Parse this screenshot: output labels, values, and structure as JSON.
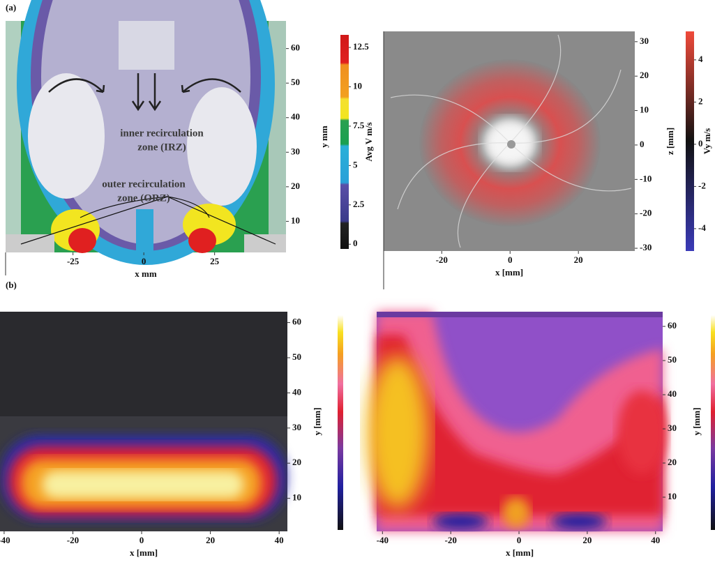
{
  "panel_labels": [
    "(a)",
    "(b)"
  ],
  "chart_data": [
    {
      "type": "flow-image",
      "xlabel": "x mm",
      "ylabel": "y mm",
      "xlim": [
        -48.8,
        50.2
      ],
      "ylim": [
        1,
        68
      ],
      "xticks": [
        -25,
        0,
        25
      ],
      "yticks": [
        10,
        20,
        30,
        40,
        50,
        60
      ],
      "colorbar": {
        "label": "Avg V m/s",
        "lim": [
          -0.3,
          13.3
        ],
        "ticks": [
          0,
          2.5,
          5,
          7.5,
          10,
          12.5
        ]
      },
      "annotations": [
        "inner recirculation",
        "zone (IRZ)",
        "outer recirculation",
        "zone (ORZ)"
      ]
    },
    {
      "type": "flow-image",
      "xlabel": "x [mm]",
      "ylabel": "z [mm]",
      "xlim": [
        -37,
        36.5
      ],
      "ylim": [
        -30.8,
        33
      ],
      "xticks": [
        -20,
        0,
        20
      ],
      "yticks": [
        -30,
        -20,
        -10,
        0,
        10,
        20,
        30
      ],
      "colorbar": {
        "label": "Vy m/s",
        "lim": [
          -5.06,
          5.35
        ],
        "ticks": [
          -4,
          -2,
          0,
          2,
          4
        ]
      }
    },
    {
      "type": "intensity-image",
      "xlabel": "x [mm]",
      "ylabel": "y [mm]",
      "xlim": [
        -41.2,
        42.4
      ],
      "ylim": [
        0.6,
        63.1
      ],
      "xticks": [
        -40,
        -20,
        0,
        20,
        40
      ],
      "yticks": [
        10,
        20,
        30,
        40,
        50,
        60
      ]
    },
    {
      "type": "intensity-image",
      "xlabel": "x [mm]",
      "ylabel": "y [mm]",
      "xlim": [
        -41.7,
        42.1
      ],
      "ylim": [
        0,
        64.3
      ],
      "xticks": [
        -40,
        -20,
        0,
        20,
        40
      ],
      "yticks": [
        10,
        20,
        30,
        40,
        50,
        60
      ]
    }
  ]
}
